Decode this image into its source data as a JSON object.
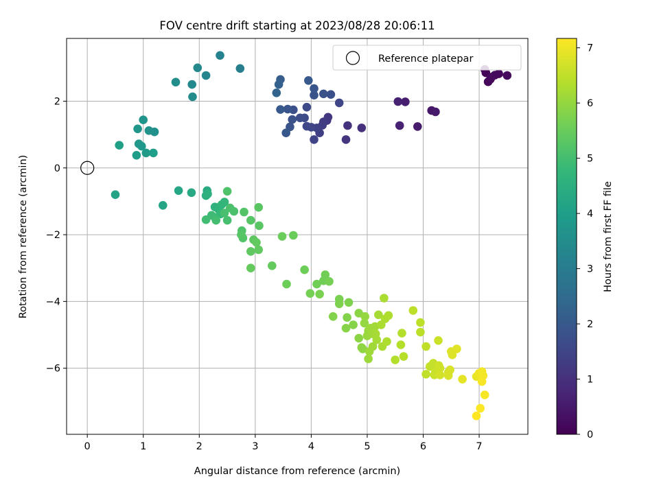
{
  "chart_data": {
    "type": "scatter",
    "title": "FOV centre drift starting at 2023/08/28 20:06:11",
    "xlabel": "Angular distance from reference (arcmin)",
    "ylabel": "Rotation from reference (arcmin)",
    "xlim": [
      -0.37,
      7.87
    ],
    "ylim": [
      -7.98,
      3.88
    ],
    "xticks": [
      0,
      1,
      2,
      3,
      4,
      5,
      6,
      7
    ],
    "yticks": [
      -6,
      -4,
      -2,
      0,
      2
    ],
    "grid": true,
    "legend": {
      "position": "top-right",
      "entries": [
        "Reference platepar"
      ]
    },
    "reference": {
      "x": 0,
      "y": 0,
      "label": "Reference platepar"
    },
    "colorbar": {
      "label": "Hours from first FF file",
      "min": 0,
      "max": 7.17,
      "ticks": [
        0,
        1,
        2,
        3,
        4,
        5,
        6,
        7
      ],
      "colormap": "viridis"
    },
    "points": [
      [
        7.12,
        2.85,
        0.05
      ],
      [
        7.1,
        2.95,
        0.08
      ],
      [
        7.16,
        2.58,
        0.1
      ],
      [
        7.2,
        2.66,
        0.12
      ],
      [
        7.28,
        2.78,
        0.14
      ],
      [
        7.35,
        2.82,
        0.16
      ],
      [
        7.5,
        2.77,
        0.2
      ],
      [
        7.22,
        2.72,
        0.22
      ],
      [
        6.15,
        1.72,
        0.45
      ],
      [
        6.22,
        1.68,
        0.5
      ],
      [
        5.9,
        1.24,
        0.55
      ],
      [
        5.68,
        1.98,
        0.6
      ],
      [
        5.55,
        1.99,
        0.65
      ],
      [
        5.58,
        1.27,
        0.7
      ],
      [
        4.9,
        1.2,
        1.0
      ],
      [
        4.65,
        1.27,
        1.05
      ],
      [
        4.62,
        0.85,
        1.1
      ],
      [
        4.3,
        1.52,
        1.15
      ],
      [
        4.28,
        1.42,
        1.2
      ],
      [
        4.22,
        1.38,
        1.25
      ],
      [
        4.2,
        1.28,
        1.3
      ],
      [
        4.15,
        1.05,
        1.35
      ],
      [
        4.1,
        1.2,
        1.4
      ],
      [
        4.05,
        0.85,
        1.45
      ],
      [
        4.0,
        1.22,
        1.5
      ],
      [
        3.92,
        1.25,
        1.55
      ],
      [
        3.92,
        1.82,
        1.6
      ],
      [
        3.88,
        1.5,
        1.65
      ],
      [
        3.8,
        1.5,
        1.7
      ],
      [
        3.68,
        1.74,
        1.75
      ],
      [
        3.66,
        1.45,
        1.8
      ],
      [
        3.62,
        1.23,
        1.85
      ],
      [
        3.58,
        1.76,
        1.9
      ],
      [
        3.55,
        1.05,
        1.95
      ],
      [
        3.45,
        1.75,
        2.0
      ],
      [
        4.5,
        1.95,
        1.55
      ],
      [
        4.35,
        2.2,
        1.75
      ],
      [
        4.22,
        2.22,
        1.8
      ],
      [
        4.05,
        2.18,
        1.85
      ],
      [
        4.05,
        2.38,
        1.9
      ],
      [
        3.95,
        2.62,
        2.0
      ],
      [
        3.45,
        2.65,
        2.1
      ],
      [
        3.42,
        2.5,
        2.2
      ],
      [
        3.38,
        2.25,
        2.3
      ],
      [
        2.73,
        2.98,
        3.1
      ],
      [
        2.37,
        3.37,
        3.2
      ],
      [
        2.12,
        2.77,
        3.3
      ],
      [
        1.97,
        3.0,
        3.35
      ],
      [
        1.87,
        2.5,
        3.4
      ],
      [
        1.88,
        2.13,
        3.45
      ],
      [
        1.58,
        2.57,
        3.5
      ],
      [
        1.2,
        1.08,
        3.6
      ],
      [
        1.1,
        1.12,
        3.65
      ],
      [
        1.0,
        1.44,
        3.7
      ],
      [
        0.9,
        1.17,
        3.75
      ],
      [
        0.92,
        0.72,
        3.8
      ],
      [
        0.97,
        0.65,
        3.85
      ],
      [
        1.05,
        0.45,
        3.9
      ],
      [
        0.88,
        0.38,
        3.95
      ],
      [
        1.18,
        0.45,
        4.0
      ],
      [
        0.57,
        0.68,
        4.05
      ],
      [
        0.5,
        -0.8,
        4.15
      ],
      [
        1.35,
        -1.12,
        4.2
      ],
      [
        1.63,
        -0.68,
        4.25
      ],
      [
        1.86,
        -0.74,
        4.3
      ],
      [
        2.14,
        -0.68,
        4.35
      ],
      [
        2.12,
        -0.83,
        4.5
      ],
      [
        2.15,
        -0.78,
        4.55
      ],
      [
        2.28,
        -1.17,
        4.6
      ],
      [
        2.35,
        -1.25,
        4.65
      ],
      [
        2.4,
        -1.1,
        4.7
      ],
      [
        2.45,
        -1.02,
        4.75
      ],
      [
        2.38,
        -1.38,
        4.8
      ],
      [
        2.28,
        -1.48,
        4.85
      ],
      [
        2.22,
        -1.42,
        4.9
      ],
      [
        2.12,
        -1.55,
        4.95
      ],
      [
        2.3,
        -1.57,
        5.0
      ],
      [
        2.45,
        -1.35,
        5.05
      ],
      [
        2.5,
        -1.57,
        5.05
      ],
      [
        2.55,
        -1.2,
        5.1
      ],
      [
        2.62,
        -1.3,
        5.1
      ],
      [
        2.5,
        -0.7,
        5.15
      ],
      [
        2.76,
        -1.88,
        5.15
      ],
      [
        2.78,
        -2.1,
        5.2
      ],
      [
        2.8,
        -1.32,
        5.2
      ],
      [
        2.75,
        -2.0,
        5.25
      ],
      [
        2.92,
        -1.57,
        5.25
      ],
      [
        3.06,
        -1.18,
        5.3
      ],
      [
        3.07,
        -1.73,
        5.3
      ],
      [
        2.92,
        -2.5,
        5.35
      ],
      [
        2.97,
        -2.15,
        5.35
      ],
      [
        3.02,
        -2.23,
        5.4
      ],
      [
        3.06,
        -2.45,
        5.4
      ],
      [
        2.92,
        -3.0,
        5.45
      ],
      [
        3.3,
        -2.93,
        5.45
      ],
      [
        3.48,
        -2.05,
        5.5
      ],
      [
        3.68,
        -2.02,
        5.5
      ],
      [
        3.56,
        -3.48,
        5.55
      ],
      [
        3.88,
        -3.05,
        5.55
      ],
      [
        4.1,
        -3.48,
        5.6
      ],
      [
        4.22,
        -3.38,
        5.6
      ],
      [
        4.25,
        -3.2,
        5.6
      ],
      [
        4.32,
        -3.4,
        5.65
      ],
      [
        3.98,
        -3.76,
        5.65
      ],
      [
        4.15,
        -3.78,
        5.7
      ],
      [
        4.5,
        -3.93,
        5.7
      ],
      [
        4.5,
        -4.07,
        5.75
      ],
      [
        4.67,
        -4.03,
        5.75
      ],
      [
        4.39,
        -4.45,
        5.8
      ],
      [
        4.64,
        -4.48,
        5.8
      ],
      [
        4.75,
        -4.7,
        5.85
      ],
      [
        4.62,
        -4.8,
        5.85
      ],
      [
        4.85,
        -4.35,
        5.9
      ],
      [
        4.85,
        -5.1,
        5.9
      ],
      [
        4.9,
        -5.38,
        5.95
      ],
      [
        4.92,
        -5.42,
        5.95
      ],
      [
        4.95,
        -4.65,
        6.0
      ],
      [
        4.96,
        -4.45,
        6.0
      ],
      [
        5.0,
        -5.03,
        6.05
      ],
      [
        5.02,
        -4.88,
        6.05
      ],
      [
        5.02,
        -5.72,
        6.1
      ],
      [
        5.04,
        -5.5,
        6.1
      ],
      [
        5.06,
        -4.8,
        6.1
      ],
      [
        5.1,
        -4.97,
        6.15
      ],
      [
        5.1,
        -5.35,
        6.15
      ],
      [
        5.14,
        -4.75,
        6.15
      ],
      [
        5.15,
        -4.97,
        6.2
      ],
      [
        5.17,
        -5.15,
        6.2
      ],
      [
        5.2,
        -4.4,
        6.2
      ],
      [
        5.25,
        -4.7,
        6.25
      ],
      [
        5.27,
        -5.35,
        6.25
      ],
      [
        5.3,
        -3.9,
        6.25
      ],
      [
        5.32,
        -4.52,
        6.3
      ],
      [
        5.35,
        -5.2,
        6.3
      ],
      [
        5.38,
        -4.42,
        6.3
      ],
      [
        5.5,
        -5.75,
        6.35
      ],
      [
        5.6,
        -5.3,
        6.35
      ],
      [
        5.62,
        -4.95,
        6.35
      ],
      [
        5.65,
        -5.65,
        6.4
      ],
      [
        5.82,
        -4.27,
        6.45
      ],
      [
        5.95,
        -4.63,
        6.45
      ],
      [
        5.95,
        -4.92,
        6.45
      ],
      [
        6.05,
        -5.35,
        6.5
      ],
      [
        6.05,
        -6.18,
        6.5
      ],
      [
        6.12,
        -5.95,
        6.55
      ],
      [
        6.18,
        -5.85,
        6.55
      ],
      [
        6.2,
        -6.2,
        6.6
      ],
      [
        6.22,
        -6.1,
        6.6
      ],
      [
        6.27,
        -5.17,
        6.6
      ],
      [
        6.28,
        -5.92,
        6.65
      ],
      [
        6.3,
        -6.0,
        6.65
      ],
      [
        6.3,
        -6.2,
        6.7
      ],
      [
        6.45,
        -6.12,
        6.7
      ],
      [
        6.45,
        -6.22,
        6.75
      ],
      [
        6.48,
        -6.05,
        6.75
      ],
      [
        6.5,
        -5.5,
        6.8
      ],
      [
        6.52,
        -5.6,
        6.8
      ],
      [
        6.6,
        -5.42,
        6.85
      ],
      [
        6.7,
        -6.33,
        6.9
      ],
      [
        6.95,
        -6.25,
        6.95
      ],
      [
        7.0,
        -6.15,
        7.0
      ],
      [
        7.05,
        -6.1,
        7.05
      ],
      [
        7.07,
        -6.22,
        7.05
      ],
      [
        7.05,
        -6.4,
        7.1
      ],
      [
        7.1,
        -6.8,
        7.1
      ],
      [
        7.02,
        -7.2,
        7.15
      ],
      [
        6.95,
        -7.43,
        7.17
      ]
    ]
  }
}
